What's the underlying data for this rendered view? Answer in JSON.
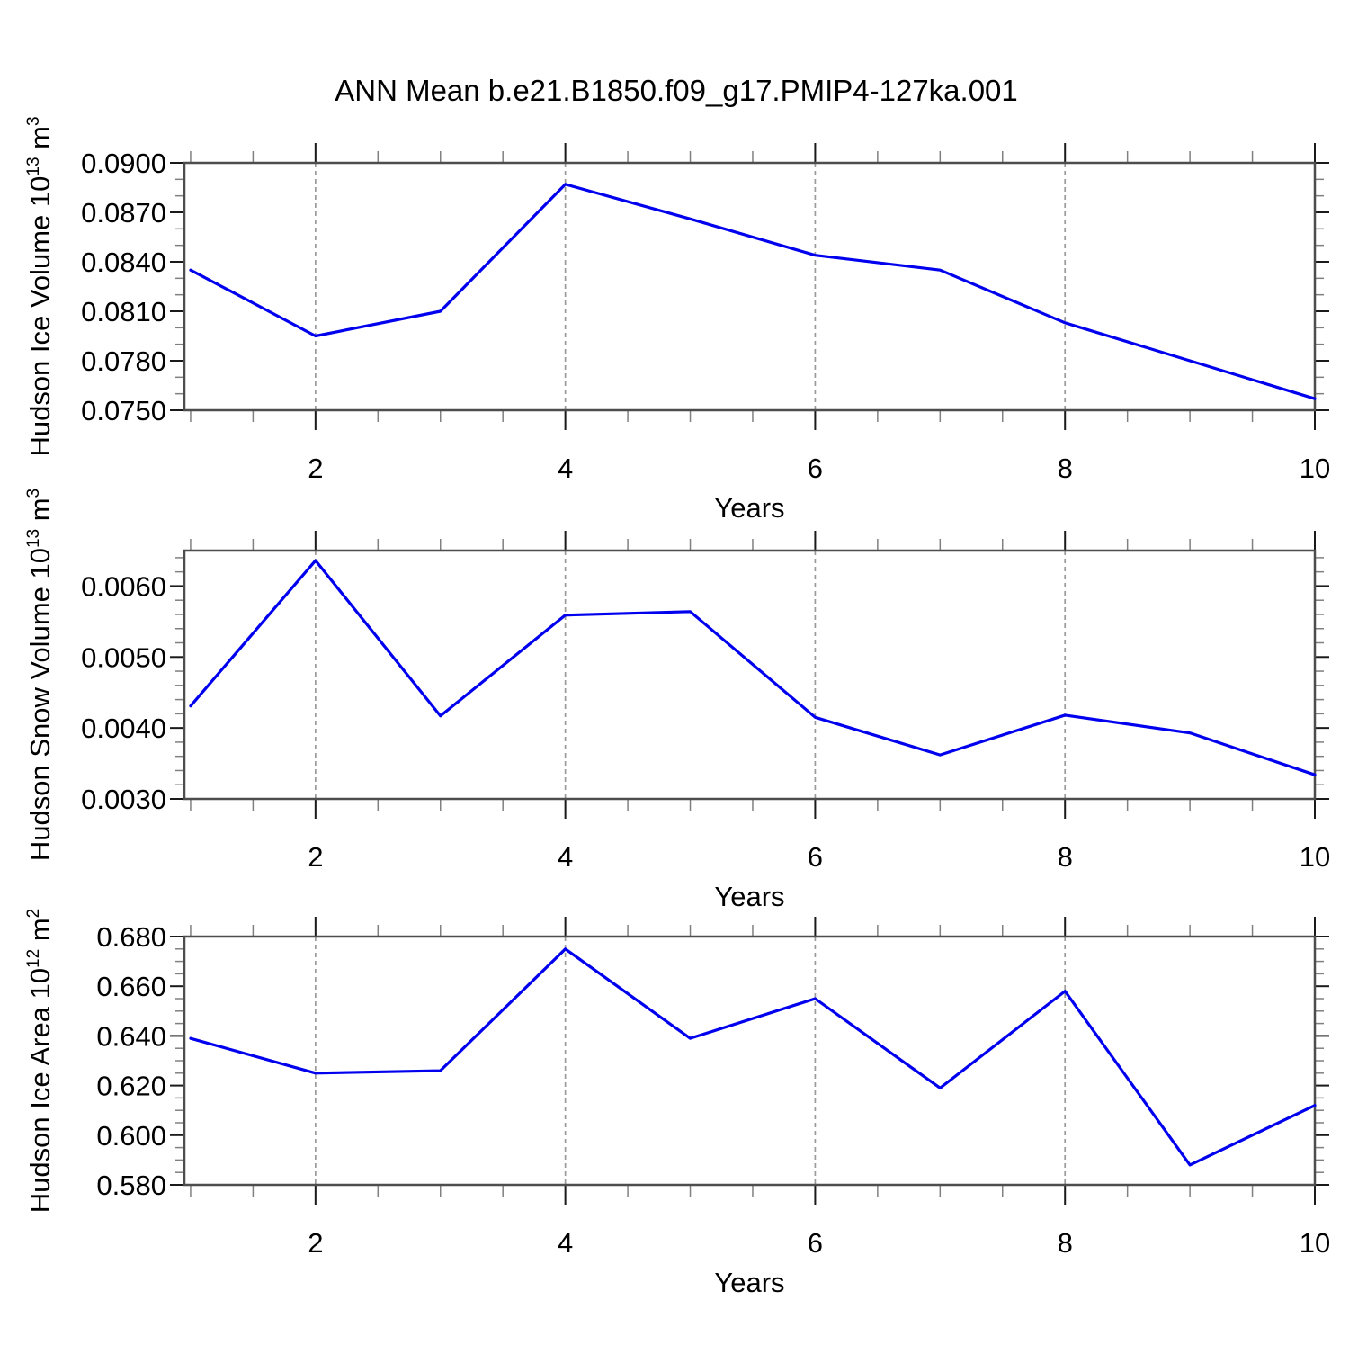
{
  "title": "ANN Mean b.e21.B1850.f09_g17.PMIP4-127ka.001",
  "colors": {
    "line": "#0000ee",
    "grid": "#9a9a9a",
    "frame": "#4d4d4d",
    "tick_major": "#1a1a1a",
    "tick_minor": "#808080",
    "text": "#000000"
  },
  "x_axis": {
    "label": "Years",
    "xlim": [
      0.95,
      10
    ],
    "major_ticks": [
      2,
      4,
      6,
      8,
      10
    ],
    "major_tick_labels": [
      "2",
      "4",
      "6",
      "8",
      "10"
    ],
    "minor_start": 1.0,
    "minor_step": 0.5,
    "gridlines": [
      2,
      4,
      6,
      8
    ]
  },
  "chart_data": [
    {
      "type": "line",
      "name": "hudson-ice-volume",
      "ylabel": "Hudson Ice Volume 10^13 m^3",
      "ylabel_parts": [
        [
          "Hudson Ice Volume 10",
          false
        ],
        [
          "13",
          true
        ],
        [
          " m",
          false
        ],
        [
          "3",
          true
        ]
      ],
      "xlabel": "Years",
      "x": [
        1,
        2,
        3,
        4,
        5,
        6,
        7,
        8,
        9,
        10
      ],
      "values": [
        0.0835,
        0.0795,
        0.081,
        0.0887,
        0.0866,
        0.0844,
        0.0835,
        0.0803,
        0.078,
        0.0757
      ],
      "ylim": [
        0.075,
        0.09
      ],
      "ytick_values": [
        0.09,
        0.087,
        0.084,
        0.081,
        0.078,
        0.075
      ],
      "ytick_labels": [
        "0.0900",
        "0.0870",
        "0.0840",
        "0.0810",
        "0.0780",
        "0.0750"
      ],
      "y_minor_step": 0.001
    },
    {
      "type": "line",
      "name": "hudson-snow-volume",
      "ylabel": "Hudson Snow Volume 10^13 m^3",
      "ylabel_parts": [
        [
          "Hudson Snow Volume 10",
          false
        ],
        [
          "13",
          true
        ],
        [
          " m",
          false
        ],
        [
          "3",
          true
        ]
      ],
      "xlabel": "Years",
      "x": [
        1,
        2,
        3,
        4,
        5,
        6,
        7,
        8,
        9,
        10
      ],
      "values": [
        0.00431,
        0.00636,
        0.00417,
        0.00559,
        0.00564,
        0.00415,
        0.00362,
        0.00418,
        0.00393,
        0.00334
      ],
      "ylim": [
        0.003,
        0.0065
      ],
      "ytick_values": [
        0.006,
        0.005,
        0.004,
        0.003
      ],
      "ytick_labels": [
        "0.0060",
        "0.0050",
        "0.0040",
        "0.0030"
      ],
      "y_minor_step": 0.0002
    },
    {
      "type": "line",
      "name": "hudson-ice-area",
      "ylabel": "Hudson Ice Area 10^12 m^2",
      "ylabel_parts": [
        [
          "Hudson Ice Area 10",
          false
        ],
        [
          "12",
          true
        ],
        [
          " m",
          false
        ],
        [
          "2",
          true
        ]
      ],
      "xlabel": "Years",
      "x": [
        1,
        2,
        3,
        4,
        5,
        6,
        7,
        8,
        9,
        10
      ],
      "values": [
        0.639,
        0.625,
        0.626,
        0.675,
        0.639,
        0.655,
        0.619,
        0.658,
        0.588,
        0.612
      ],
      "ylim": [
        0.58,
        0.68
      ],
      "ytick_values": [
        0.68,
        0.66,
        0.64,
        0.62,
        0.6,
        0.58
      ],
      "ytick_labels": [
        "0.680",
        "0.660",
        "0.640",
        "0.620",
        "0.600",
        "0.580"
      ],
      "y_minor_step": 0.005
    }
  ]
}
